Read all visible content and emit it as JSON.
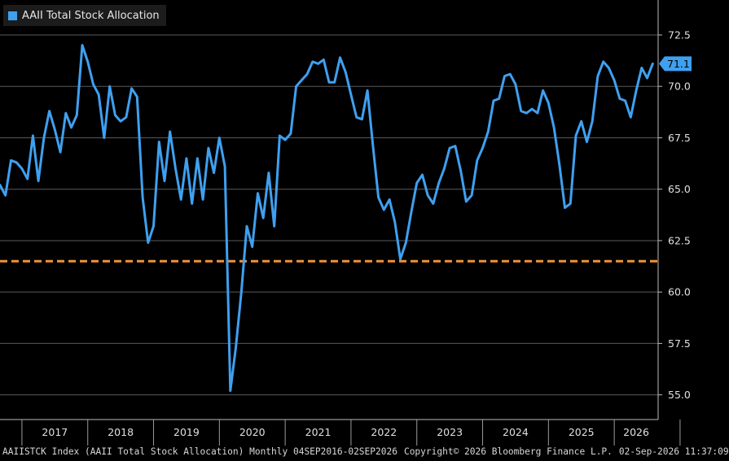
{
  "legend": {
    "label": "AAII Total Stock Allocation",
    "color": "#3fa0f0"
  },
  "footer": {
    "source": "AAIISTCK Index (AAII Total Stock Allocation) Monthly 04SEP2016-02SEP2026",
    "copyright": "Copyright© 2026 Bloomberg Finance L.P.",
    "timestamp": "02-Sep-2026 11:37:09"
  },
  "last_value_label": "71.1",
  "chart_data": {
    "type": "line",
    "title": "",
    "xlabel": "",
    "ylabel": "",
    "ylim": [
      53.8,
      74.2
    ],
    "y_ticks": [
      "55.0",
      "57.5",
      "60.0",
      "62.5",
      "65.0",
      "67.5",
      "70.0",
      "72.5"
    ],
    "x_year_labels": [
      "2017",
      "2018",
      "2019",
      "2020",
      "2021",
      "2022",
      "2023",
      "2024",
      "2025",
      "2026"
    ],
    "x_range": [
      "2016-09",
      "2026-09"
    ],
    "grid": true,
    "reference_line": {
      "value": 61.5,
      "color": "#f0923a",
      "style": "dashed"
    },
    "series": [
      {
        "color": "#3fa0f0",
        "points": [
          [
            "2016-09",
            65.2
          ],
          [
            "2016-10",
            64.7
          ],
          [
            "2016-11",
            66.4
          ],
          [
            "2016-12",
            66.3
          ],
          [
            "2017-01",
            66.0
          ],
          [
            "2017-02",
            65.5
          ],
          [
            "2017-03",
            67.6
          ],
          [
            "2017-04",
            65.4
          ],
          [
            "2017-05",
            67.5
          ],
          [
            "2017-06",
            68.8
          ],
          [
            "2017-07",
            67.9
          ],
          [
            "2017-08",
            66.8
          ],
          [
            "2017-09",
            68.7
          ],
          [
            "2017-10",
            68.0
          ],
          [
            "2017-11",
            68.6
          ],
          [
            "2017-12",
            72.0
          ],
          [
            "2018-01",
            71.2
          ],
          [
            "2018-02",
            70.1
          ],
          [
            "2018-03",
            69.6
          ],
          [
            "2018-04",
            67.5
          ],
          [
            "2018-05",
            70.0
          ],
          [
            "2018-06",
            68.6
          ],
          [
            "2018-07",
            68.3
          ],
          [
            "2018-08",
            68.5
          ],
          [
            "2018-09",
            69.9
          ],
          [
            "2018-10",
            69.5
          ],
          [
            "2018-11",
            64.6
          ],
          [
            "2018-12",
            62.4
          ],
          [
            "2019-01",
            63.2
          ],
          [
            "2019-02",
            67.3
          ],
          [
            "2019-03",
            65.4
          ],
          [
            "2019-04",
            67.8
          ],
          [
            "2019-05",
            66.0
          ],
          [
            "2019-06",
            64.5
          ],
          [
            "2019-07",
            66.5
          ],
          [
            "2019-08",
            64.3
          ],
          [
            "2019-09",
            66.5
          ],
          [
            "2019-10",
            64.5
          ],
          [
            "2019-11",
            67.0
          ],
          [
            "2019-12",
            65.8
          ],
          [
            "2020-01",
            67.5
          ],
          [
            "2020-02",
            66.1
          ],
          [
            "2020-03",
            55.2
          ],
          [
            "2020-04",
            57.3
          ],
          [
            "2020-05",
            60.0
          ],
          [
            "2020-06",
            63.2
          ],
          [
            "2020-07",
            62.2
          ],
          [
            "2020-08",
            64.8
          ],
          [
            "2020-09",
            63.6
          ],
          [
            "2020-10",
            65.8
          ],
          [
            "2020-11",
            63.2
          ],
          [
            "2020-12",
            67.6
          ],
          [
            "2021-01",
            67.4
          ],
          [
            "2021-02",
            67.7
          ],
          [
            "2021-03",
            70.0
          ],
          [
            "2021-04",
            70.3
          ],
          [
            "2021-05",
            70.6
          ],
          [
            "2021-06",
            71.2
          ],
          [
            "2021-07",
            71.1
          ],
          [
            "2021-08",
            71.3
          ],
          [
            "2021-09",
            70.2
          ],
          [
            "2021-10",
            70.2
          ],
          [
            "2021-11",
            71.4
          ],
          [
            "2021-12",
            70.7
          ],
          [
            "2022-01",
            69.6
          ],
          [
            "2022-02",
            68.5
          ],
          [
            "2022-03",
            68.4
          ],
          [
            "2022-04",
            69.8
          ],
          [
            "2022-05",
            67.1
          ],
          [
            "2022-06",
            64.6
          ],
          [
            "2022-07",
            64.0
          ],
          [
            "2022-08",
            64.5
          ],
          [
            "2022-09",
            63.4
          ],
          [
            "2022-10",
            61.6
          ],
          [
            "2022-11",
            62.4
          ],
          [
            "2022-12",
            63.9
          ],
          [
            "2023-01",
            65.3
          ],
          [
            "2023-02",
            65.7
          ],
          [
            "2023-03",
            64.7
          ],
          [
            "2023-04",
            64.3
          ],
          [
            "2023-05",
            65.3
          ],
          [
            "2023-06",
            66.0
          ],
          [
            "2023-07",
            67.0
          ],
          [
            "2023-08",
            67.1
          ],
          [
            "2023-09",
            65.9
          ],
          [
            "2023-10",
            64.4
          ],
          [
            "2023-11",
            64.7
          ],
          [
            "2023-12",
            66.4
          ],
          [
            "2024-01",
            67.0
          ],
          [
            "2024-02",
            67.8
          ],
          [
            "2024-03",
            69.3
          ],
          [
            "2024-04",
            69.4
          ],
          [
            "2024-05",
            70.5
          ],
          [
            "2024-06",
            70.6
          ],
          [
            "2024-07",
            70.1
          ],
          [
            "2024-08",
            68.8
          ],
          [
            "2024-09",
            68.7
          ],
          [
            "2024-10",
            68.9
          ],
          [
            "2024-11",
            68.7
          ],
          [
            "2024-12",
            69.8
          ],
          [
            "2025-01",
            69.2
          ],
          [
            "2025-02",
            68.0
          ],
          [
            "2025-03",
            66.2
          ],
          [
            "2025-04",
            64.1
          ],
          [
            "2025-05",
            64.3
          ],
          [
            "2025-06",
            67.6
          ],
          [
            "2025-07",
            68.3
          ],
          [
            "2025-08",
            67.3
          ],
          [
            "2025-09",
            68.3
          ],
          [
            "2025-10",
            70.5
          ],
          [
            "2025-11",
            71.2
          ],
          [
            "2025-12",
            70.9
          ],
          [
            "2026-01",
            70.3
          ],
          [
            "2026-02",
            69.4
          ],
          [
            "2026-03",
            69.3
          ],
          [
            "2026-04",
            68.5
          ],
          [
            "2026-05",
            69.8
          ],
          [
            "2026-06",
            70.9
          ],
          [
            "2026-07",
            70.4
          ],
          [
            "2026-08",
            71.1
          ]
        ]
      }
    ]
  }
}
